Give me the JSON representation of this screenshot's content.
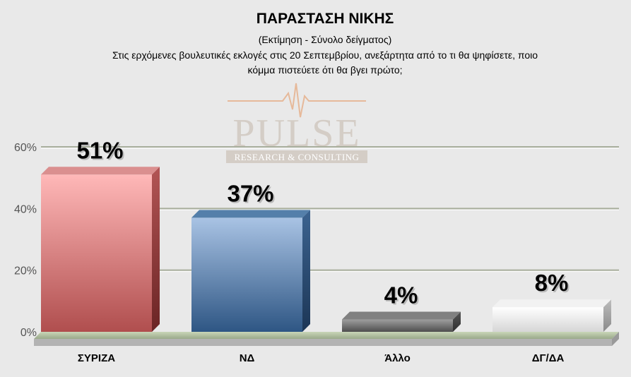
{
  "chart_data": {
    "type": "bar",
    "title": "ΠΑΡΑΣΤΑΣΗ ΝΙΚΗΣ",
    "subtitle": "(Εκτίμηση - Σύνολο δείγματος)",
    "question_line1": "Στις ερχόμενες βουλευτικές εκλογές στις 20 Σεπτεμβρίου, ανεξάρτητα από το τι θα ψηφίσετε, ποιο",
    "question_line2": "κόμμα πιστεύετε ότι θα βγει πρώτο;",
    "categories": [
      "ΣΥΡΙΖΑ",
      "ΝΔ",
      "Άλλο",
      "ΔΓ/ΔΑ"
    ],
    "values": [
      51,
      37,
      4,
      8
    ],
    "value_labels": [
      "51%",
      "37%",
      "4%",
      "8%"
    ],
    "colors": [
      "#d98a8a",
      "#4c79a6",
      "#7a7a7a",
      "#f2f2f2"
    ],
    "yticks": [
      "0%",
      "20%",
      "40%",
      "60%"
    ],
    "ylim": [
      0,
      60
    ],
    "grid": true,
    "legend": "none"
  },
  "watermark": {
    "brand": "PULSE",
    "tagline": "RESEARCH & CONSULTING"
  }
}
